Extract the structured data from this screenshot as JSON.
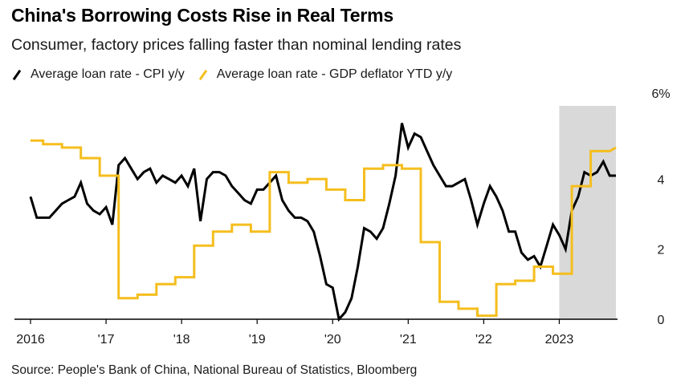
{
  "header": {
    "title": "China's Borrowing Costs Rise in Real Terms",
    "subtitle": "Consumer, factory prices falling faster than nominal lending rates"
  },
  "legend": [
    {
      "label": "Average loan rate - CPI y/y",
      "color": "#000000"
    },
    {
      "label": "Average loan rate - GDP deflator YTD y/y",
      "color": "#f5be1e"
    }
  ],
  "source": "Source: People's Bank of China, National Bureau of Statistics, Bloomberg",
  "chart_data": {
    "type": "line",
    "x_axis": {
      "range": [
        "2016-01",
        "2023-10"
      ],
      "ticks": [
        {
          "date": "2016-01",
          "label": "2016"
        },
        {
          "date": "2017-01",
          "label": "'17"
        },
        {
          "date": "2018-01",
          "label": "'18"
        },
        {
          "date": "2019-01",
          "label": "'19"
        },
        {
          "date": "2020-01",
          "label": "'20"
        },
        {
          "date": "2021-01",
          "label": "'21"
        },
        {
          "date": "2022-01",
          "label": "'22"
        },
        {
          "date": "2023-01",
          "label": "2023"
        }
      ]
    },
    "y_axis": {
      "range": [
        0,
        6
      ],
      "ticks": [
        {
          "value": 0,
          "label": "0"
        },
        {
          "value": 2,
          "label": "2"
        },
        {
          "value": 4,
          "label": "4"
        },
        {
          "value": 6,
          "label": "6%"
        }
      ]
    },
    "shaded_region": {
      "from": "2023-01",
      "to": "2023-10",
      "color": "#d9d9d9"
    },
    "grid": false,
    "series": [
      {
        "name": "Average loan rate - CPI y/y",
        "color": "#000000",
        "points": [
          [
            "2016-01",
            3.5
          ],
          [
            "2016-02",
            2.9
          ],
          [
            "2016-03",
            2.9
          ],
          [
            "2016-04",
            2.9
          ],
          [
            "2016-05",
            3.1
          ],
          [
            "2016-06",
            3.3
          ],
          [
            "2016-07",
            3.4
          ],
          [
            "2016-08",
            3.5
          ],
          [
            "2016-09",
            3.9
          ],
          [
            "2016-10",
            3.3
          ],
          [
            "2016-11",
            3.1
          ],
          [
            "2016-12",
            3.0
          ],
          [
            "2017-01",
            3.2
          ],
          [
            "2017-02",
            2.7
          ],
          [
            "2017-03",
            4.4
          ],
          [
            "2017-04",
            4.6
          ],
          [
            "2017-05",
            4.3
          ],
          [
            "2017-06",
            4.0
          ],
          [
            "2017-07",
            4.2
          ],
          [
            "2017-08",
            4.3
          ],
          [
            "2017-09",
            3.9
          ],
          [
            "2017-10",
            4.1
          ],
          [
            "2017-11",
            4.0
          ],
          [
            "2017-12",
            3.9
          ],
          [
            "2018-01",
            4.1
          ],
          [
            "2018-02",
            3.8
          ],
          [
            "2018-03",
            4.3
          ],
          [
            "2018-04",
            2.8
          ],
          [
            "2018-05",
            4.0
          ],
          [
            "2018-06",
            4.2
          ],
          [
            "2018-07",
            4.2
          ],
          [
            "2018-08",
            4.1
          ],
          [
            "2018-09",
            3.8
          ],
          [
            "2018-10",
            3.6
          ],
          [
            "2018-11",
            3.4
          ],
          [
            "2018-12",
            3.3
          ],
          [
            "2019-01",
            3.7
          ],
          [
            "2019-02",
            3.7
          ],
          [
            "2019-03",
            3.9
          ],
          [
            "2019-04",
            4.1
          ],
          [
            "2019-05",
            3.4
          ],
          [
            "2019-06",
            3.1
          ],
          [
            "2019-07",
            2.9
          ],
          [
            "2019-08",
            2.9
          ],
          [
            "2019-09",
            2.8
          ],
          [
            "2019-10",
            2.5
          ],
          [
            "2019-11",
            1.8
          ],
          [
            "2019-12",
            1.0
          ],
          [
            "2020-01",
            0.9
          ],
          [
            "2020-02",
            0.0
          ],
          [
            "2020-03",
            0.2
          ],
          [
            "2020-04",
            0.6
          ],
          [
            "2020-05",
            1.5
          ],
          [
            "2020-06",
            2.6
          ],
          [
            "2020-07",
            2.5
          ],
          [
            "2020-08",
            2.3
          ],
          [
            "2020-09",
            2.6
          ],
          [
            "2020-10",
            3.3
          ],
          [
            "2020-11",
            4.1
          ],
          [
            "2020-12",
            5.6
          ],
          [
            "2021-01",
            4.9
          ],
          [
            "2021-02",
            5.3
          ],
          [
            "2021-03",
            5.2
          ],
          [
            "2021-04",
            4.8
          ],
          [
            "2021-05",
            4.4
          ],
          [
            "2021-06",
            4.1
          ],
          [
            "2021-07",
            3.8
          ],
          [
            "2021-08",
            3.8
          ],
          [
            "2021-09",
            3.9
          ],
          [
            "2021-10",
            4.0
          ],
          [
            "2021-11",
            3.4
          ],
          [
            "2021-12",
            2.7
          ],
          [
            "2022-01",
            3.3
          ],
          [
            "2022-02",
            3.8
          ],
          [
            "2022-03",
            3.5
          ],
          [
            "2022-04",
            3.1
          ],
          [
            "2022-05",
            2.5
          ],
          [
            "2022-06",
            2.5
          ],
          [
            "2022-07",
            1.9
          ],
          [
            "2022-08",
            1.7
          ],
          [
            "2022-09",
            1.8
          ],
          [
            "2022-10",
            1.5
          ],
          [
            "2022-11",
            2.1
          ],
          [
            "2022-12",
            2.7
          ],
          [
            "2023-01",
            2.4
          ],
          [
            "2023-02",
            2.0
          ],
          [
            "2023-03",
            3.1
          ],
          [
            "2023-04",
            3.5
          ],
          [
            "2023-05",
            4.2
          ],
          [
            "2023-06",
            4.1
          ],
          [
            "2023-07",
            4.2
          ],
          [
            "2023-08",
            4.5
          ],
          [
            "2023-09",
            4.1
          ],
          [
            "2023-10",
            4.1
          ]
        ]
      },
      {
        "name": "Average loan rate - GDP deflator YTD y/y",
        "color": "#f5be1e",
        "points": [
          [
            "2016-01",
            5.1
          ],
          [
            "2016-03",
            5.1
          ],
          [
            "2016-03",
            5.0
          ],
          [
            "2016-06",
            5.0
          ],
          [
            "2016-06",
            4.9
          ],
          [
            "2016-09",
            4.9
          ],
          [
            "2016-09",
            4.6
          ],
          [
            "2016-12",
            4.6
          ],
          [
            "2016-12",
            4.1
          ],
          [
            "2017-03",
            4.1
          ],
          [
            "2017-03",
            0.6
          ],
          [
            "2017-06",
            0.6
          ],
          [
            "2017-06",
            0.7
          ],
          [
            "2017-09",
            0.7
          ],
          [
            "2017-09",
            1.0
          ],
          [
            "2017-12",
            1.0
          ],
          [
            "2017-12",
            1.2
          ],
          [
            "2018-03",
            1.2
          ],
          [
            "2018-03",
            2.1
          ],
          [
            "2018-06",
            2.1
          ],
          [
            "2018-06",
            2.5
          ],
          [
            "2018-09",
            2.5
          ],
          [
            "2018-09",
            2.7
          ],
          [
            "2018-12",
            2.7
          ],
          [
            "2018-12",
            2.5
          ],
          [
            "2019-03",
            2.5
          ],
          [
            "2019-03",
            4.2
          ],
          [
            "2019-06",
            4.2
          ],
          [
            "2019-06",
            3.9
          ],
          [
            "2019-09",
            3.9
          ],
          [
            "2019-09",
            4.0
          ],
          [
            "2019-12",
            4.0
          ],
          [
            "2019-12",
            3.7
          ],
          [
            "2020-03",
            3.7
          ],
          [
            "2020-03",
            3.4
          ],
          [
            "2020-06",
            3.4
          ],
          [
            "2020-06",
            4.3
          ],
          [
            "2020-09",
            4.3
          ],
          [
            "2020-09",
            4.4
          ],
          [
            "2020-12",
            4.4
          ],
          [
            "2020-12",
            4.3
          ],
          [
            "2021-03",
            4.3
          ],
          [
            "2021-03",
            2.2
          ],
          [
            "2021-06",
            2.2
          ],
          [
            "2021-06",
            0.5
          ],
          [
            "2021-09",
            0.5
          ],
          [
            "2021-09",
            0.3
          ],
          [
            "2021-12",
            0.3
          ],
          [
            "2021-12",
            0.1
          ],
          [
            "2022-03",
            0.1
          ],
          [
            "2022-03",
            1.0
          ],
          [
            "2022-06",
            1.0
          ],
          [
            "2022-06",
            1.1
          ],
          [
            "2022-09",
            1.1
          ],
          [
            "2022-09",
            1.5
          ],
          [
            "2022-12",
            1.5
          ],
          [
            "2022-12",
            1.3
          ],
          [
            "2023-03",
            1.3
          ],
          [
            "2023-03",
            3.8
          ],
          [
            "2023-06",
            3.8
          ],
          [
            "2023-06",
            4.8
          ],
          [
            "2023-09",
            4.8
          ],
          [
            "2023-09",
            4.8
          ],
          [
            "2023-10",
            4.9
          ]
        ]
      }
    ]
  }
}
